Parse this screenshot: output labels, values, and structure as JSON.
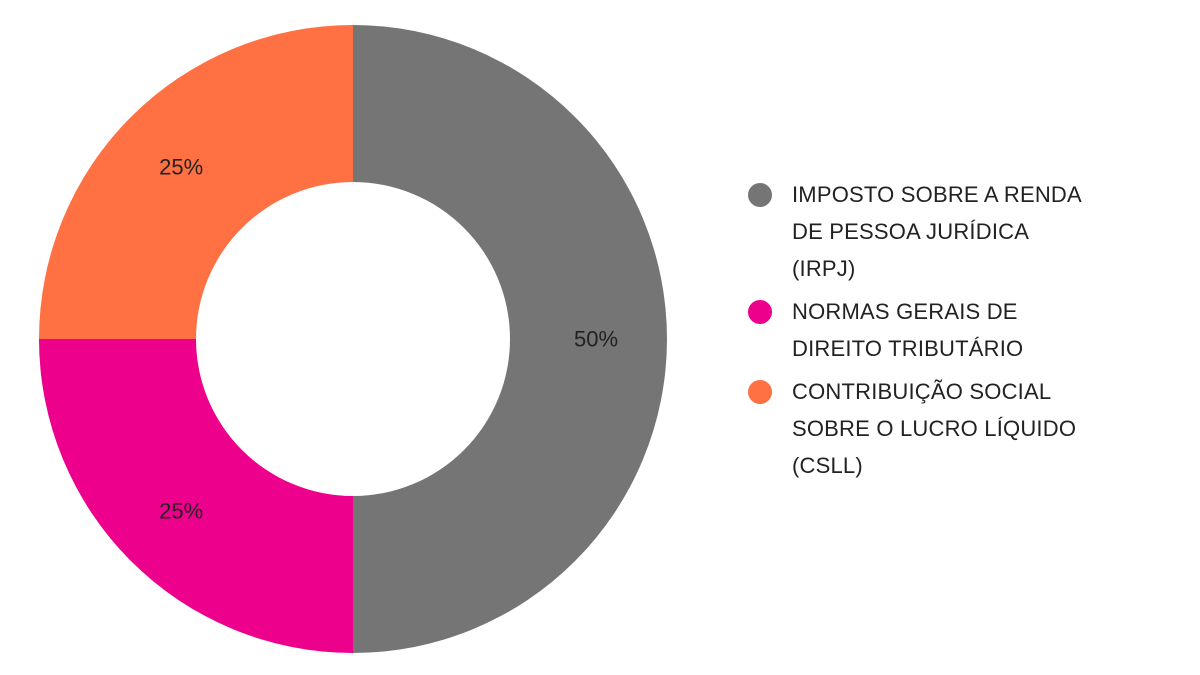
{
  "chart_data": {
    "type": "pie",
    "donut": true,
    "slices": [
      {
        "label_lines": [
          "IMPOSTO SOBRE A RENDA",
          "DE PESSOA JURÍDICA",
          "(IRPJ)"
        ],
        "value": 50,
        "display": "50%",
        "color": "#757575"
      },
      {
        "label_lines": [
          "NORMAS GERAIS DE",
          "DIREITO TRIBUTÁRIO"
        ],
        "value": 25,
        "display": "25%",
        "color": "#EC008C"
      },
      {
        "label_lines": [
          "CONTRIBUIÇÃO SOCIAL",
          "SOBRE O LUCRO LÍQUIDO",
          "(CSLL)"
        ],
        "value": 25,
        "display": "25%",
        "color": "#FF7043"
      }
    ],
    "legend_position": "right"
  }
}
